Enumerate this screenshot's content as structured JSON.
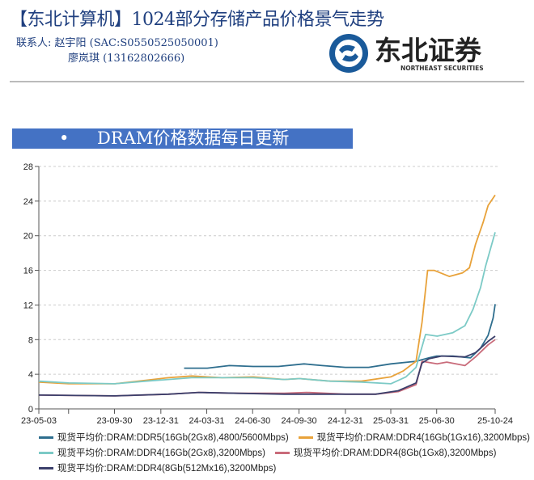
{
  "header": {
    "title": "【东北计算机】1024部分存储产品价格景气走势",
    "contact_label": "联系人:",
    "contact_1": "赵宇阳 (SAC:S0550525050001)",
    "contact_2": "廖岚琪 (13162802666)",
    "logo_text": "东北证券",
    "logo_subtext": "NORTHEAST SECURITIES",
    "logo_color": "#1a5a9a"
  },
  "banner": {
    "bullet": "•",
    "text": "DRAM价格数据每日更新",
    "color": "#4472c4"
  },
  "chart_data": {
    "type": "line",
    "title": "",
    "xlabel": "",
    "ylabel": "",
    "ylim": [
      0,
      28
    ],
    "yticks": [
      "0",
      "4",
      "8",
      "12",
      "16",
      "20",
      "24",
      "28"
    ],
    "xlim": [
      "2023-05-03",
      "2025-10-24"
    ],
    "xticks": [
      {
        "date": "2023-05-03",
        "label": "23-05-03"
      },
      {
        "date": "2023-09-30",
        "label": "23-09-30"
      },
      {
        "date": "2023-12-31",
        "label": "23-12-31"
      },
      {
        "date": "2024-03-31",
        "label": "24-03-31"
      },
      {
        "date": "2024-06-30",
        "label": "24-06-30"
      },
      {
        "date": "2024-09-30",
        "label": "24-09-30"
      },
      {
        "date": "2024-12-31",
        "label": "24-12-31"
      },
      {
        "date": "2025-03-31",
        "label": "25-03-31"
      },
      {
        "date": "2025-06-30",
        "label": "25-06-30"
      },
      {
        "date": "2025-10-24",
        "label": "25-10-24"
      }
    ],
    "grid": "horizontal-dashed",
    "legend": "bottom",
    "series": [
      {
        "name": "现货平均价:DRAM:DDR5(16Gb(2Gx8),4800/5600Mbps)",
        "color": "#2e6e8e",
        "points": [
          [
            "2024-02-15",
            4.7
          ],
          [
            "2024-04-01",
            4.7
          ],
          [
            "2024-05-15",
            5.0
          ],
          [
            "2024-07-01",
            4.9
          ],
          [
            "2024-08-20",
            4.9
          ],
          [
            "2024-10-10",
            5.2
          ],
          [
            "2024-11-15",
            5.0
          ],
          [
            "2024-12-31",
            4.8
          ],
          [
            "2025-02-15",
            4.8
          ],
          [
            "2025-03-31",
            5.2
          ],
          [
            "2025-05-20",
            5.5
          ],
          [
            "2025-06-15",
            5.9
          ],
          [
            "2025-06-30",
            6.1
          ],
          [
            "2025-08-01",
            6.1
          ],
          [
            "2025-09-05",
            5.9
          ],
          [
            "2025-09-25",
            7.0
          ],
          [
            "2025-10-10",
            8.5
          ],
          [
            "2025-10-20",
            10.5
          ],
          [
            "2025-10-24",
            12.1
          ]
        ]
      },
      {
        "name": "现货平均价:DRAM:DDR4(16Gb(1Gx16),3200Mbps)",
        "color": "#e8a23a",
        "points": [
          [
            "2023-05-03",
            3.1
          ],
          [
            "2023-07-01",
            2.9
          ],
          [
            "2023-10-01",
            2.9
          ],
          [
            "2023-12-01",
            3.3
          ],
          [
            "2024-01-15",
            3.6
          ],
          [
            "2024-03-01",
            3.8
          ],
          [
            "2024-05-01",
            3.6
          ],
          [
            "2024-07-01",
            3.7
          ],
          [
            "2024-09-01",
            3.4
          ],
          [
            "2024-10-01",
            3.5
          ],
          [
            "2024-12-01",
            3.2
          ],
          [
            "2025-02-01",
            3.2
          ],
          [
            "2025-03-31",
            3.7
          ],
          [
            "2025-04-25",
            4.4
          ],
          [
            "2025-05-20",
            5.5
          ],
          [
            "2025-06-01",
            10.0
          ],
          [
            "2025-06-12",
            16.0
          ],
          [
            "2025-06-25",
            16.0
          ],
          [
            "2025-07-25",
            15.3
          ],
          [
            "2025-08-20",
            15.7
          ],
          [
            "2025-09-03",
            16.3
          ],
          [
            "2025-09-15",
            19.0
          ],
          [
            "2025-09-30",
            21.5
          ],
          [
            "2025-10-10",
            23.5
          ],
          [
            "2025-10-24",
            24.7
          ]
        ]
      },
      {
        "name": "现货平均价:DRAM:DDR4(16Gb(2Gx8),3200Mbps)",
        "color": "#7ccac6",
        "points": [
          [
            "2023-05-03",
            3.2
          ],
          [
            "2023-07-01",
            3.0
          ],
          [
            "2023-10-01",
            2.9
          ],
          [
            "2023-12-01",
            3.2
          ],
          [
            "2024-01-15",
            3.4
          ],
          [
            "2024-03-01",
            3.6
          ],
          [
            "2024-05-01",
            3.6
          ],
          [
            "2024-07-01",
            3.6
          ],
          [
            "2024-09-01",
            3.4
          ],
          [
            "2024-10-01",
            3.5
          ],
          [
            "2024-12-01",
            3.2
          ],
          [
            "2025-02-01",
            3.1
          ],
          [
            "2025-03-31",
            2.9
          ],
          [
            "2025-04-30",
            3.7
          ],
          [
            "2025-05-20",
            4.8
          ],
          [
            "2025-06-08",
            8.6
          ],
          [
            "2025-07-01",
            8.4
          ],
          [
            "2025-08-01",
            8.8
          ],
          [
            "2025-08-25",
            9.6
          ],
          [
            "2025-09-10",
            11.5
          ],
          [
            "2025-09-25",
            14.0
          ],
          [
            "2025-10-05",
            16.5
          ],
          [
            "2025-10-24",
            20.4
          ]
        ]
      },
      {
        "name": "现货平均价:DRAM:DDR4(8Gb(1Gx8),3200Mbps)",
        "color": "#c96b7a",
        "points": [
          [
            "2023-05-03",
            1.6
          ],
          [
            "2023-10-01",
            1.5
          ],
          [
            "2024-01-15",
            1.7
          ],
          [
            "2024-03-15",
            1.9
          ],
          [
            "2024-06-01",
            1.8
          ],
          [
            "2024-09-01",
            1.8
          ],
          [
            "2024-10-15",
            1.9
          ],
          [
            "2024-12-31",
            1.7
          ],
          [
            "2025-03-01",
            1.7
          ],
          [
            "2025-04-15",
            2.0
          ],
          [
            "2025-05-20",
            2.8
          ],
          [
            "2025-06-01",
            5.5
          ],
          [
            "2025-07-01",
            5.2
          ],
          [
            "2025-07-20",
            5.4
          ],
          [
            "2025-08-25",
            5.0
          ],
          [
            "2025-09-15",
            6.0
          ],
          [
            "2025-10-10",
            7.4
          ],
          [
            "2025-10-24",
            8.0
          ]
        ]
      },
      {
        "name": "现货平均价:DRAM:DDR4(8Gb(512Mx16),3200Mbps)",
        "color": "#3b3f6b",
        "points": [
          [
            "2023-05-03",
            1.6
          ],
          [
            "2023-10-01",
            1.5
          ],
          [
            "2024-01-15",
            1.7
          ],
          [
            "2024-03-15",
            1.9
          ],
          [
            "2024-06-01",
            1.8
          ],
          [
            "2024-09-01",
            1.7
          ],
          [
            "2024-12-31",
            1.7
          ],
          [
            "2025-03-01",
            1.7
          ],
          [
            "2025-04-15",
            2.1
          ],
          [
            "2025-05-20",
            3.0
          ],
          [
            "2025-06-01",
            5.3
          ],
          [
            "2025-06-15",
            5.8
          ],
          [
            "2025-07-10",
            6.1
          ],
          [
            "2025-08-25",
            6.0
          ],
          [
            "2025-09-15",
            6.5
          ],
          [
            "2025-10-10",
            7.8
          ],
          [
            "2025-10-24",
            8.4
          ]
        ]
      }
    ]
  }
}
